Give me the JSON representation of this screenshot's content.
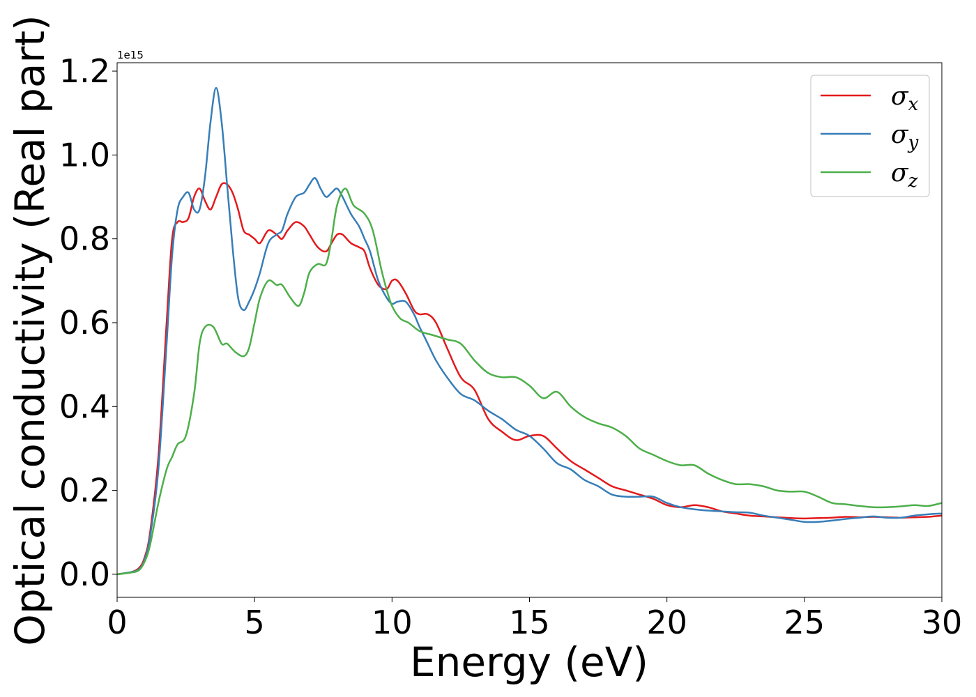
{
  "chart_data": {
    "type": "line",
    "xlabel": "Energy (eV)",
    "ylabel": "Optical conductivity (Real part)",
    "y_offset_label": "1e15",
    "xlim": [
      0,
      30
    ],
    "ylim": [
      -0.055,
      1.22
    ],
    "x_ticks": [
      0,
      5,
      10,
      15,
      20,
      25,
      30
    ],
    "y_ticks": [
      0.0,
      0.2,
      0.4,
      0.6,
      0.8,
      1.0,
      1.2
    ],
    "x_tick_labels": [
      "0",
      "5",
      "10",
      "15",
      "20",
      "25",
      "30"
    ],
    "y_tick_labels": [
      "0.0",
      "0.2",
      "0.4",
      "0.6",
      "0.8",
      "1.0",
      "1.2"
    ],
    "grid": false,
    "legend_position": "top-right",
    "series": [
      {
        "name": "σx",
        "sub": "x",
        "color": "#e31a1c",
        "x": [
          0,
          0.5,
          0.8,
          1.0,
          1.2,
          1.5,
          1.8,
          2.0,
          2.2,
          2.4,
          2.6,
          2.8,
          3.0,
          3.2,
          3.4,
          3.6,
          3.8,
          4.0,
          4.2,
          4.4,
          4.6,
          4.8,
          5.0,
          5.2,
          5.5,
          5.8,
          6.0,
          6.2,
          6.5,
          6.8,
          7.0,
          7.3,
          7.6,
          7.8,
          8.0,
          8.2,
          8.5,
          8.8,
          9.0,
          9.2,
          9.5,
          9.8,
          10.0,
          10.2,
          10.5,
          10.8,
          11.0,
          11.3,
          11.6,
          12.0,
          12.5,
          13.0,
          13.5,
          14.0,
          14.5,
          15.0,
          15.5,
          16.0,
          16.5,
          17.0,
          17.5,
          18.0,
          18.5,
          19.0,
          19.5,
          20.0,
          20.5,
          21.0,
          21.5,
          22.0,
          22.5,
          23.0,
          23.5,
          24.0,
          24.5,
          25.0,
          25.5,
          26.0,
          26.5,
          27.0,
          27.5,
          28.0,
          28.5,
          29.0,
          29.5,
          30.0
        ],
        "values": [
          0,
          0.005,
          0.015,
          0.04,
          0.1,
          0.28,
          0.6,
          0.8,
          0.84,
          0.84,
          0.85,
          0.9,
          0.92,
          0.89,
          0.87,
          0.9,
          0.93,
          0.93,
          0.91,
          0.87,
          0.82,
          0.81,
          0.8,
          0.79,
          0.82,
          0.81,
          0.8,
          0.82,
          0.84,
          0.83,
          0.81,
          0.78,
          0.77,
          0.79,
          0.81,
          0.81,
          0.79,
          0.78,
          0.77,
          0.73,
          0.69,
          0.68,
          0.7,
          0.7,
          0.67,
          0.63,
          0.62,
          0.62,
          0.6,
          0.54,
          0.47,
          0.44,
          0.37,
          0.34,
          0.32,
          0.33,
          0.33,
          0.3,
          0.27,
          0.25,
          0.23,
          0.21,
          0.2,
          0.19,
          0.18,
          0.165,
          0.16,
          0.165,
          0.16,
          0.15,
          0.145,
          0.14,
          0.138,
          0.136,
          0.134,
          0.133,
          0.134,
          0.135,
          0.137,
          0.136,
          0.137,
          0.136,
          0.135,
          0.136,
          0.137,
          0.14
        ]
      },
      {
        "name": "σy",
        "sub": "y",
        "color": "#377eb8",
        "x": [
          0,
          0.5,
          0.8,
          1.0,
          1.2,
          1.5,
          1.8,
          2.0,
          2.2,
          2.4,
          2.6,
          2.8,
          3.0,
          3.2,
          3.4,
          3.6,
          3.8,
          4.0,
          4.2,
          4.4,
          4.6,
          4.8,
          5.0,
          5.2,
          5.5,
          5.8,
          6.0,
          6.2,
          6.5,
          6.8,
          7.0,
          7.2,
          7.4,
          7.6,
          7.8,
          8.0,
          8.2,
          8.5,
          8.8,
          9.0,
          9.2,
          9.5,
          9.8,
          10.0,
          10.2,
          10.5,
          10.8,
          11.0,
          11.3,
          11.6,
          12.0,
          12.5,
          13.0,
          13.5,
          14.0,
          14.5,
          15.0,
          15.5,
          16.0,
          16.5,
          17.0,
          17.5,
          18.0,
          18.5,
          19.0,
          19.5,
          20.0,
          20.5,
          21.0,
          21.5,
          22.0,
          22.5,
          23.0,
          23.5,
          24.0,
          24.5,
          25.0,
          25.5,
          26.0,
          26.5,
          27.0,
          27.5,
          28.0,
          28.5,
          29.0,
          29.5,
          30.0
        ],
        "values": [
          0,
          0.005,
          0.012,
          0.035,
          0.09,
          0.25,
          0.55,
          0.76,
          0.87,
          0.9,
          0.91,
          0.87,
          0.87,
          0.95,
          1.08,
          1.16,
          1.08,
          0.93,
          0.78,
          0.66,
          0.63,
          0.65,
          0.68,
          0.72,
          0.79,
          0.81,
          0.82,
          0.86,
          0.9,
          0.91,
          0.93,
          0.945,
          0.92,
          0.9,
          0.91,
          0.92,
          0.9,
          0.86,
          0.83,
          0.8,
          0.77,
          0.7,
          0.66,
          0.645,
          0.65,
          0.65,
          0.62,
          0.59,
          0.55,
          0.51,
          0.47,
          0.43,
          0.415,
          0.39,
          0.37,
          0.345,
          0.33,
          0.3,
          0.265,
          0.25,
          0.225,
          0.21,
          0.19,
          0.185,
          0.185,
          0.185,
          0.17,
          0.16,
          0.155,
          0.152,
          0.15,
          0.148,
          0.147,
          0.14,
          0.135,
          0.13,
          0.125,
          0.125,
          0.128,
          0.132,
          0.135,
          0.138,
          0.135,
          0.135,
          0.14,
          0.143,
          0.145
        ]
      },
      {
        "name": "σz",
        "sub": "z",
        "color": "#4daf4a",
        "x": [
          0,
          0.5,
          0.8,
          1.0,
          1.2,
          1.5,
          1.8,
          2.0,
          2.2,
          2.5,
          2.8,
          3.0,
          3.2,
          3.5,
          3.8,
          4.0,
          4.3,
          4.6,
          4.8,
          5.0,
          5.2,
          5.5,
          5.8,
          6.0,
          6.3,
          6.6,
          6.8,
          7.0,
          7.3,
          7.6,
          7.8,
          8.0,
          8.3,
          8.6,
          9.0,
          9.3,
          9.6,
          9.8,
          10.0,
          10.3,
          10.6,
          11.0,
          11.5,
          12.0,
          12.5,
          13.0,
          13.5,
          14.0,
          14.5,
          15.0,
          15.5,
          16.0,
          16.5,
          17.0,
          17.5,
          18.0,
          18.5,
          19.0,
          19.5,
          20.0,
          20.5,
          21.0,
          21.5,
          22.0,
          22.5,
          23.0,
          23.5,
          24.0,
          24.5,
          25.0,
          25.5,
          26.0,
          26.5,
          27.0,
          27.5,
          28.0,
          28.5,
          29.0,
          29.5,
          30.0
        ],
        "values": [
          0,
          0.004,
          0.01,
          0.03,
          0.07,
          0.17,
          0.25,
          0.28,
          0.31,
          0.33,
          0.43,
          0.55,
          0.59,
          0.59,
          0.55,
          0.55,
          0.53,
          0.52,
          0.54,
          0.6,
          0.66,
          0.7,
          0.69,
          0.69,
          0.66,
          0.64,
          0.67,
          0.72,
          0.74,
          0.74,
          0.8,
          0.88,
          0.92,
          0.88,
          0.86,
          0.82,
          0.73,
          0.68,
          0.64,
          0.61,
          0.6,
          0.58,
          0.57,
          0.56,
          0.55,
          0.51,
          0.48,
          0.47,
          0.47,
          0.45,
          0.42,
          0.435,
          0.4,
          0.375,
          0.36,
          0.35,
          0.33,
          0.3,
          0.285,
          0.27,
          0.26,
          0.26,
          0.24,
          0.225,
          0.215,
          0.215,
          0.21,
          0.2,
          0.197,
          0.197,
          0.185,
          0.17,
          0.167,
          0.163,
          0.16,
          0.16,
          0.162,
          0.165,
          0.163,
          0.17
        ]
      }
    ]
  }
}
